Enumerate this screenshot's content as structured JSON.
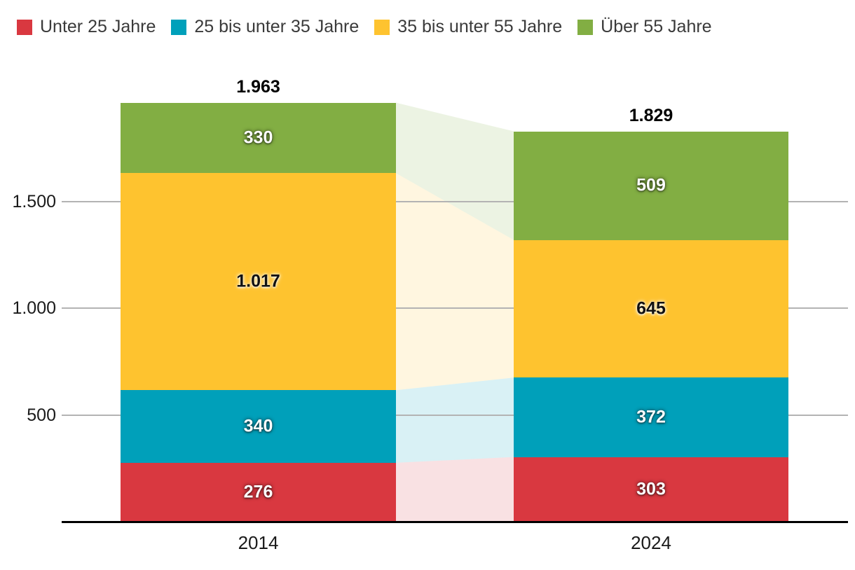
{
  "chart_data": {
    "type": "bar",
    "stacked": true,
    "orientation": "vertical",
    "categories": [
      "2014",
      "2024"
    ],
    "series": [
      {
        "name": "Unter 25 Jahre",
        "color": "#d93840",
        "label_color": "#ffffff",
        "values": [
          276,
          303
        ],
        "labels": [
          "276",
          "303"
        ]
      },
      {
        "name": "25 bis unter 35 Jahre",
        "color": "#00a0ba",
        "label_color": "#ffffff",
        "values": [
          340,
          372
        ],
        "labels": [
          "340",
          "372"
        ]
      },
      {
        "name": "35 bis unter 55 Jahre",
        "color": "#fec32f",
        "label_color": "#111111",
        "values": [
          1017,
          645
        ],
        "labels": [
          "1.017",
          "645"
        ]
      },
      {
        "name": "Über 55 Jahre",
        "color": "#82ae43",
        "label_color": "#ffffff",
        "values": [
          330,
          509
        ],
        "labels": [
          "330",
          "509"
        ]
      }
    ],
    "totals": {
      "labels": [
        "1.963",
        "1.829"
      ],
      "values": [
        1963,
        1829
      ]
    },
    "y_axis": {
      "ticks": [
        {
          "label": "1.500",
          "value": 1500
        },
        {
          "label": "1.000",
          "value": 1000
        },
        {
          "label": "500",
          "value": 500
        }
      ],
      "min": 0,
      "max": 2000
    },
    "grid": true,
    "legend_position": "top",
    "connector_bands": true,
    "connector_opacity": 0.15,
    "colors": {
      "gridline": "#b3b3b3",
      "axis": "#000000",
      "tick_text": "#1a1a1a",
      "legend_text": "#3a3a3a",
      "background": "#ffffff"
    }
  }
}
